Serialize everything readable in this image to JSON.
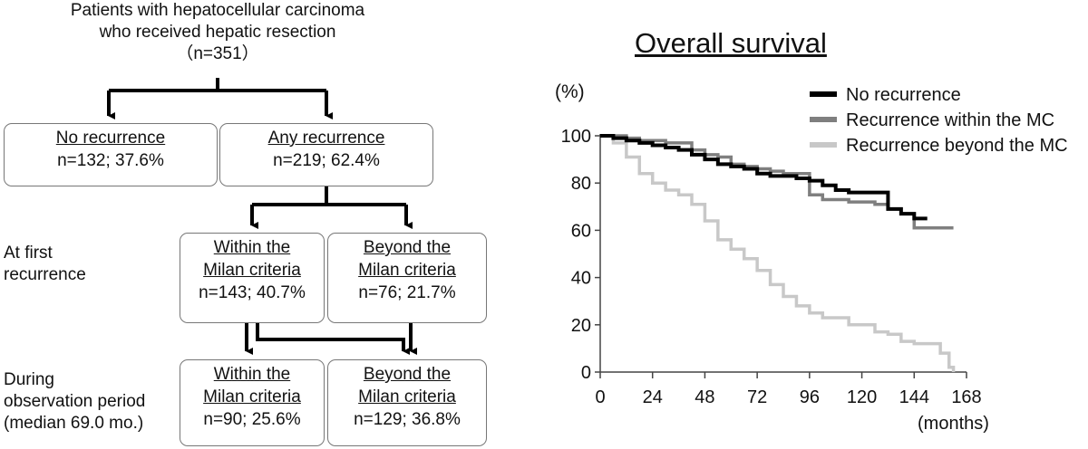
{
  "flowchart": {
    "root": {
      "line1": "Patients with hepatocellular carcinoma",
      "line2": "who received hepatic resection",
      "line3": "（n=351）"
    },
    "no_recurrence": {
      "title": "No recurrence",
      "count": "n=132; 37.6%"
    },
    "any_recurrence": {
      "title": "Any recurrence",
      "count": "n=219; 62.4%"
    },
    "first_recurrence_label": {
      "line1": "At first",
      "line2": "recurrence"
    },
    "first_within": {
      "title1": "Within the",
      "title2": "Milan criteria",
      "count": "n=143; 40.7%"
    },
    "first_beyond": {
      "title1": "Beyond the",
      "title2": "Milan criteria",
      "count": "n=76; 21.7%"
    },
    "observation_label": {
      "line1": "During",
      "line2": "observation period",
      "line3": "(median 69.0 mo.)"
    },
    "obs_within": {
      "title1": "Within the",
      "title2": "Milan criteria",
      "count": "n=90; 25.6%"
    },
    "obs_beyond": {
      "title1": "Beyond the",
      "title2": "Milan criteria",
      "count": "n=129; 36.8%"
    }
  },
  "chart_data": {
    "type": "line",
    "title": "Overall survival",
    "ylabel": "(%)",
    "xlabel": "(months)",
    "xlim": [
      0,
      168
    ],
    "ylim": [
      0,
      100
    ],
    "xticks": [
      0,
      24,
      48,
      72,
      96,
      120,
      144,
      168
    ],
    "yticks": [
      0,
      20,
      40,
      60,
      80,
      100
    ],
    "legend_position": "top-right",
    "series": [
      {
        "name": "No recurrence",
        "color": "#000000",
        "x": [
          0,
          6,
          12,
          18,
          24,
          30,
          36,
          42,
          48,
          54,
          60,
          66,
          72,
          78,
          84,
          90,
          96,
          102,
          108,
          114,
          120,
          126,
          132,
          138,
          144,
          150
        ],
        "y": [
          100,
          99,
          98,
          97,
          96,
          95,
          94,
          92,
          90,
          88,
          87,
          86,
          84,
          83,
          83,
          82,
          81,
          79,
          77,
          76,
          76,
          76,
          69,
          67,
          65,
          65
        ]
      },
      {
        "name": "Recurrence within the MC",
        "color": "#7f7f7f",
        "x": [
          0,
          6,
          12,
          18,
          24,
          30,
          36,
          42,
          48,
          54,
          60,
          66,
          72,
          78,
          84,
          90,
          96,
          102,
          108,
          114,
          120,
          126,
          132,
          138,
          144,
          150,
          156,
          162
        ],
        "y": [
          100,
          100,
          99,
          98,
          98,
          97,
          97,
          94,
          92,
          91,
          88,
          87,
          86,
          85,
          84,
          84,
          75,
          73,
          73,
          72,
          72,
          71,
          69,
          67,
          61,
          61,
          61,
          61
        ]
      },
      {
        "name": "Recurrence beyond the MC",
        "color": "#c8c8c8",
        "x": [
          0,
          6,
          12,
          18,
          24,
          30,
          36,
          42,
          48,
          54,
          60,
          66,
          72,
          78,
          84,
          90,
          96,
          102,
          108,
          114,
          120,
          126,
          132,
          138,
          144,
          150,
          156,
          160,
          162
        ],
        "y": [
          100,
          97,
          91,
          84,
          80,
          77,
          75,
          71,
          64,
          56,
          52,
          48,
          43,
          37,
          32,
          28,
          25,
          23,
          23,
          20,
          20,
          17,
          16,
          13,
          12,
          12,
          8,
          2,
          0
        ]
      }
    ]
  }
}
